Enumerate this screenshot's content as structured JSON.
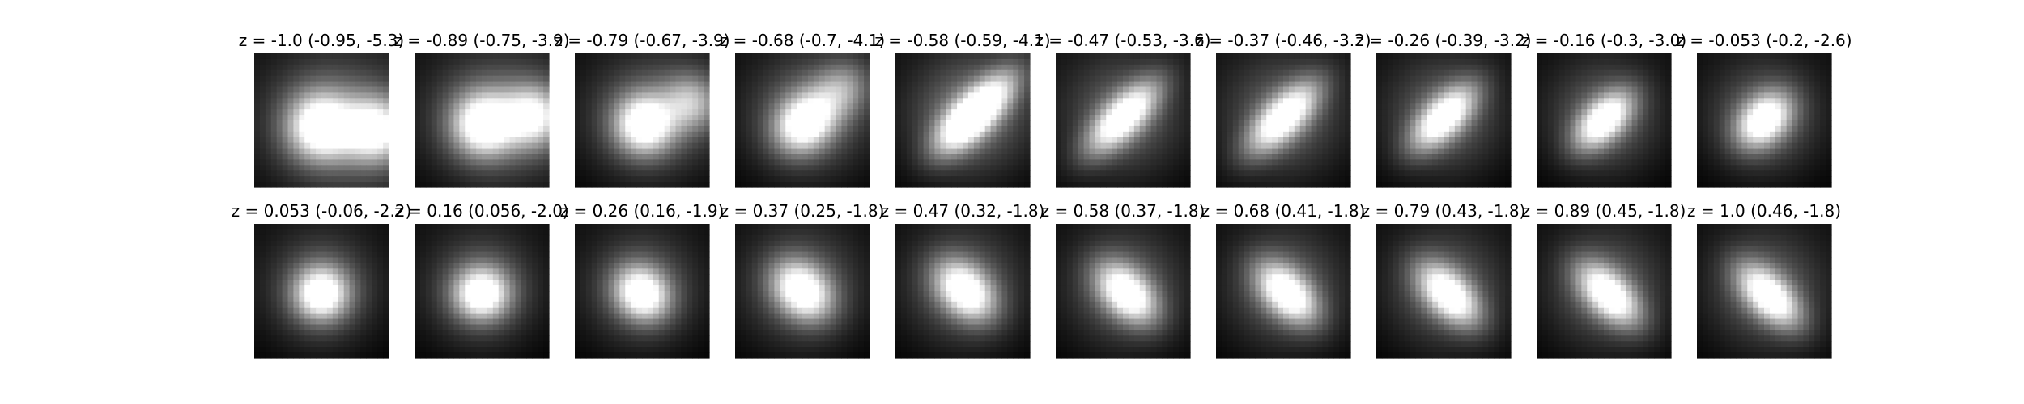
{
  "chart_data": {
    "type": "heatmap",
    "colormap": "grayscale",
    "axes_visible": false,
    "rows": [
      {
        "panels": [
          {
            "title": "z = -1.0 (-0.95, -5.3)",
            "z": -1.0,
            "coords": [
              -0.95,
              -5.3
            ],
            "blobs": [
              {
                "x": 0.5,
                "y": 0.55,
                "w": 1.0
              },
              {
                "x": 0.9,
                "y": 0.57,
                "w": 0.95
              }
            ],
            "angle": 0,
            "elong": 1.0,
            "spread": 0.16
          },
          {
            "title": "z = -0.89 (-0.75, -3.9)",
            "z": -0.89,
            "coords": [
              -0.75,
              -3.9
            ],
            "blobs": [
              {
                "x": 0.52,
                "y": 0.53,
                "w": 1.0
              },
              {
                "x": 0.88,
                "y": 0.47,
                "w": 0.85
              }
            ],
            "angle": 0,
            "elong": 1.0,
            "spread": 0.15
          },
          {
            "title": "z = -0.79 (-0.67, -3.9)",
            "z": -0.79,
            "coords": [
              -0.67,
              -3.9
            ],
            "blobs": [
              {
                "x": 0.52,
                "y": 0.53,
                "w": 1.0
              },
              {
                "x": 0.86,
                "y": 0.37,
                "w": 0.55
              }
            ],
            "angle": 0,
            "elong": 1.0,
            "spread": 0.14
          },
          {
            "title": "z = -0.68 (-0.7, -4.1)",
            "z": -0.68,
            "coords": [
              -0.7,
              -4.1
            ],
            "blobs": [
              {
                "x": 0.52,
                "y": 0.52,
                "w": 1.0
              },
              {
                "x": 0.78,
                "y": 0.28,
                "w": 0.45
              }
            ],
            "angle": -45,
            "elong": 1.2,
            "spread": 0.14
          },
          {
            "title": "z = -0.58 (-0.59, -4.1)",
            "z": -0.58,
            "coords": [
              -0.59,
              -4.1
            ],
            "blobs": [
              {
                "x": 0.52,
                "y": 0.52,
                "w": 1.0
              },
              {
                "x": 0.72,
                "y": 0.32,
                "w": 0.6
              }
            ],
            "angle": -45,
            "elong": 2.0,
            "spread": 0.14
          },
          {
            "title": "z = -0.47 (-0.53, -3.6)",
            "z": -0.47,
            "coords": [
              -0.53,
              -3.6
            ],
            "blobs": [
              {
                "x": 0.5,
                "y": 0.48,
                "w": 1.0
              }
            ],
            "angle": -45,
            "elong": 2.4,
            "spread": 0.15
          },
          {
            "title": "z = -0.37 (-0.46, -3.2)",
            "z": -0.37,
            "coords": [
              -0.46,
              -3.2
            ],
            "blobs": [
              {
                "x": 0.5,
                "y": 0.48,
                "w": 1.0
              }
            ],
            "angle": -45,
            "elong": 2.3,
            "spread": 0.15
          },
          {
            "title": "z = -0.26 (-0.39, -3.2)",
            "z": -0.26,
            "coords": [
              -0.39,
              -3.2
            ],
            "blobs": [
              {
                "x": 0.5,
                "y": 0.48,
                "w": 1.0
              }
            ],
            "angle": -45,
            "elong": 2.1,
            "spread": 0.14
          },
          {
            "title": "z = -0.16 (-0.3, -3.0)",
            "z": -0.16,
            "coords": [
              -0.3,
              -3.0
            ],
            "blobs": [
              {
                "x": 0.5,
                "y": 0.5,
                "w": 1.0
              }
            ],
            "angle": -45,
            "elong": 1.8,
            "spread": 0.13
          },
          {
            "title": "z = -0.053 (-0.2, -2.6)",
            "z": -0.053,
            "coords": [
              -0.2,
              -2.6
            ],
            "blobs": [
              {
                "x": 0.5,
                "y": 0.5,
                "w": 1.0
              }
            ],
            "angle": -45,
            "elong": 1.4,
            "spread": 0.13
          }
        ]
      },
      {
        "panels": [
          {
            "title": "z = 0.053 (-0.06, -2.2)",
            "z": 0.053,
            "coords": [
              -0.06,
              -2.2
            ],
            "blobs": [
              {
                "x": 0.5,
                "y": 0.52,
                "w": 1.0
              }
            ],
            "angle": 0,
            "elong": 1.0,
            "spread": 0.13
          },
          {
            "title": "z = 0.16 (0.056, -2.0)",
            "z": 0.16,
            "coords": [
              0.056,
              -2.0
            ],
            "blobs": [
              {
                "x": 0.5,
                "y": 0.52,
                "w": 1.0
              }
            ],
            "angle": 0,
            "elong": 1.05,
            "spread": 0.13
          },
          {
            "title": "z = 0.26 (0.16, -1.9)",
            "z": 0.26,
            "coords": [
              0.16,
              -1.9
            ],
            "blobs": [
              {
                "x": 0.5,
                "y": 0.52,
                "w": 1.0
              }
            ],
            "angle": 45,
            "elong": 1.15,
            "spread": 0.13
          },
          {
            "title": "z = 0.37 (0.25, -1.8)",
            "z": 0.37,
            "coords": [
              0.25,
              -1.8
            ],
            "blobs": [
              {
                "x": 0.5,
                "y": 0.5,
                "w": 1.0
              }
            ],
            "angle": 45,
            "elong": 1.3,
            "spread": 0.14
          },
          {
            "title": "z = 0.47 (0.32, -1.8)",
            "z": 0.47,
            "coords": [
              0.32,
              -1.8
            ],
            "blobs": [
              {
                "x": 0.52,
                "y": 0.5,
                "w": 1.0
              }
            ],
            "angle": 45,
            "elong": 1.45,
            "spread": 0.14
          },
          {
            "title": "z = 0.58 (0.37, -1.8)",
            "z": 0.58,
            "coords": [
              0.37,
              -1.8
            ],
            "blobs": [
              {
                "x": 0.53,
                "y": 0.52,
                "w": 1.0
              }
            ],
            "angle": 45,
            "elong": 1.6,
            "spread": 0.14
          },
          {
            "title": "z = 0.68 (0.41, -1.8)",
            "z": 0.68,
            "coords": [
              0.41,
              -1.8
            ],
            "blobs": [
              {
                "x": 0.53,
                "y": 0.52,
                "w": 1.0
              }
            ],
            "angle": 45,
            "elong": 1.7,
            "spread": 0.14
          },
          {
            "title": "z = 0.79 (0.43, -1.8)",
            "z": 0.79,
            "coords": [
              0.43,
              -1.8
            ],
            "blobs": [
              {
                "x": 0.54,
                "y": 0.53,
                "w": 1.0
              }
            ],
            "angle": 45,
            "elong": 1.8,
            "spread": 0.14
          },
          {
            "title": "z = 0.89 (0.45, -1.8)",
            "z": 0.89,
            "coords": [
              0.45,
              -1.8
            ],
            "blobs": [
              {
                "x": 0.54,
                "y": 0.53,
                "w": 1.0
              }
            ],
            "angle": 45,
            "elong": 1.85,
            "spread": 0.14
          },
          {
            "title": "z = 1.0 (0.46, -1.8)",
            "z": 1.0,
            "coords": [
              0.46,
              -1.8
            ],
            "blobs": [
              {
                "x": 0.54,
                "y": 0.54,
                "w": 1.0
              }
            ],
            "angle": 45,
            "elong": 1.9,
            "spread": 0.14
          }
        ]
      }
    ]
  }
}
